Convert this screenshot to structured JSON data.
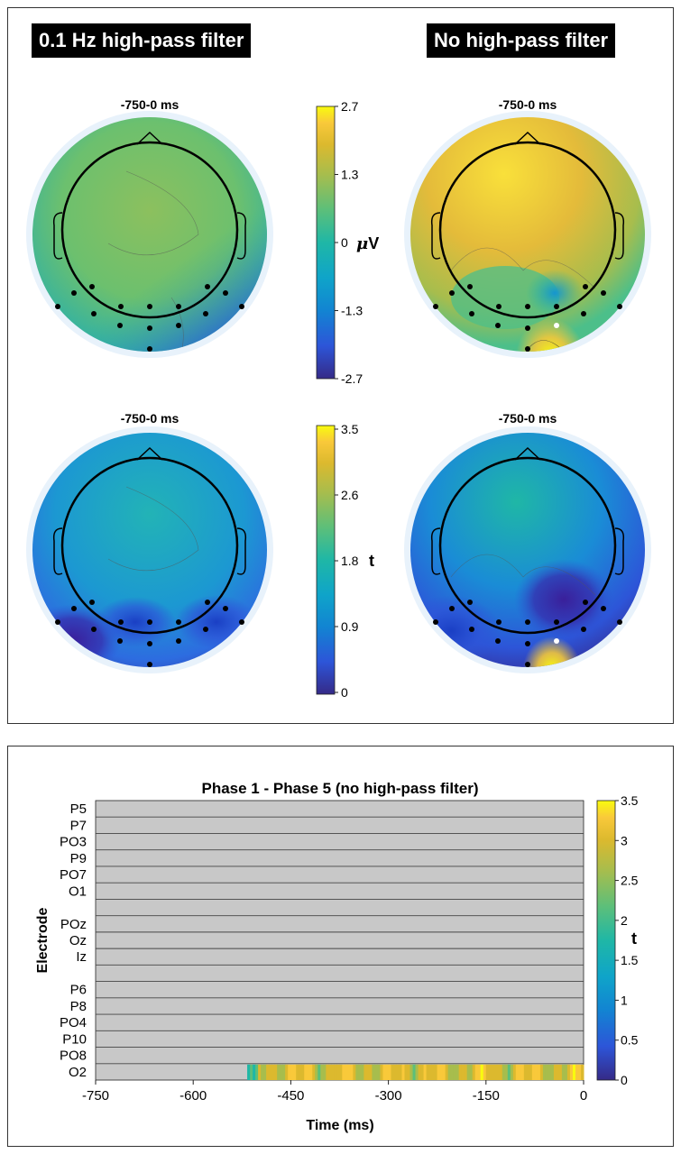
{
  "conditions": {
    "left": "0.1 Hz high-pass filter",
    "right": "No high-pass filter"
  },
  "topomaps": [
    {
      "window": "-750-0 ms",
      "condition": "0.1 Hz high-pass filter",
      "measure": "amplitude"
    },
    {
      "window": "-750-0 ms",
      "condition": "No high-pass filter",
      "measure": "amplitude"
    },
    {
      "window": "-750-0 ms",
      "condition": "0.1 Hz high-pass filter",
      "measure": "t"
    },
    {
      "window": "-750-0 ms",
      "condition": "No high-pass filter",
      "measure": "t"
    }
  ],
  "colorbar_amplitude": {
    "unit_symbol": "μ",
    "unit_letter": "V",
    "range": [
      -2.7,
      2.7
    ],
    "ticks": [
      "2.7",
      "1.3",
      "0",
      "-1.3",
      "-2.7"
    ]
  },
  "colorbar_t_top": {
    "label": "t",
    "range": [
      0,
      3.5
    ],
    "ticks": [
      "3.5",
      "2.6",
      "1.8",
      "0.9",
      "0"
    ]
  },
  "colors": {
    "parula": [
      "#352a87",
      "#2d55d8",
      "#1284d2",
      "#0fa4c9",
      "#1fb7a6",
      "#5cbf7a",
      "#a7bd4d",
      "#dcb92e",
      "#f9c93a",
      "#f9fb0e"
    ],
    "grey_mask": "#c8c8c8",
    "head_outline": "#000000"
  },
  "chart_data": {
    "type": "heatmap",
    "title": "Phase 1 - Phase 5 (no high-pass filter)",
    "xlabel": "Time (ms)",
    "ylabel": "Electrode",
    "xlim": [
      -750,
      0
    ],
    "x_ticks": [
      "-750",
      "-600",
      "-450",
      "-300",
      "-150",
      "0"
    ],
    "electrodes": [
      "P5",
      "P7",
      "PO3",
      "P9",
      "PO7",
      "O1",
      "",
      "POz",
      "Oz",
      "Iz",
      "",
      "P6",
      "P8",
      "PO4",
      "P10",
      "PO8",
      "O2"
    ],
    "significant": [
      {
        "electrode": "O2",
        "from_ms": -517,
        "to_ms": 0
      }
    ],
    "colorbar": {
      "label": "t",
      "range": [
        0,
        3.5
      ],
      "ticks": [
        "3.5",
        "3",
        "2.5",
        "2",
        "1.5",
        "1",
        "0.5",
        "0"
      ]
    }
  }
}
